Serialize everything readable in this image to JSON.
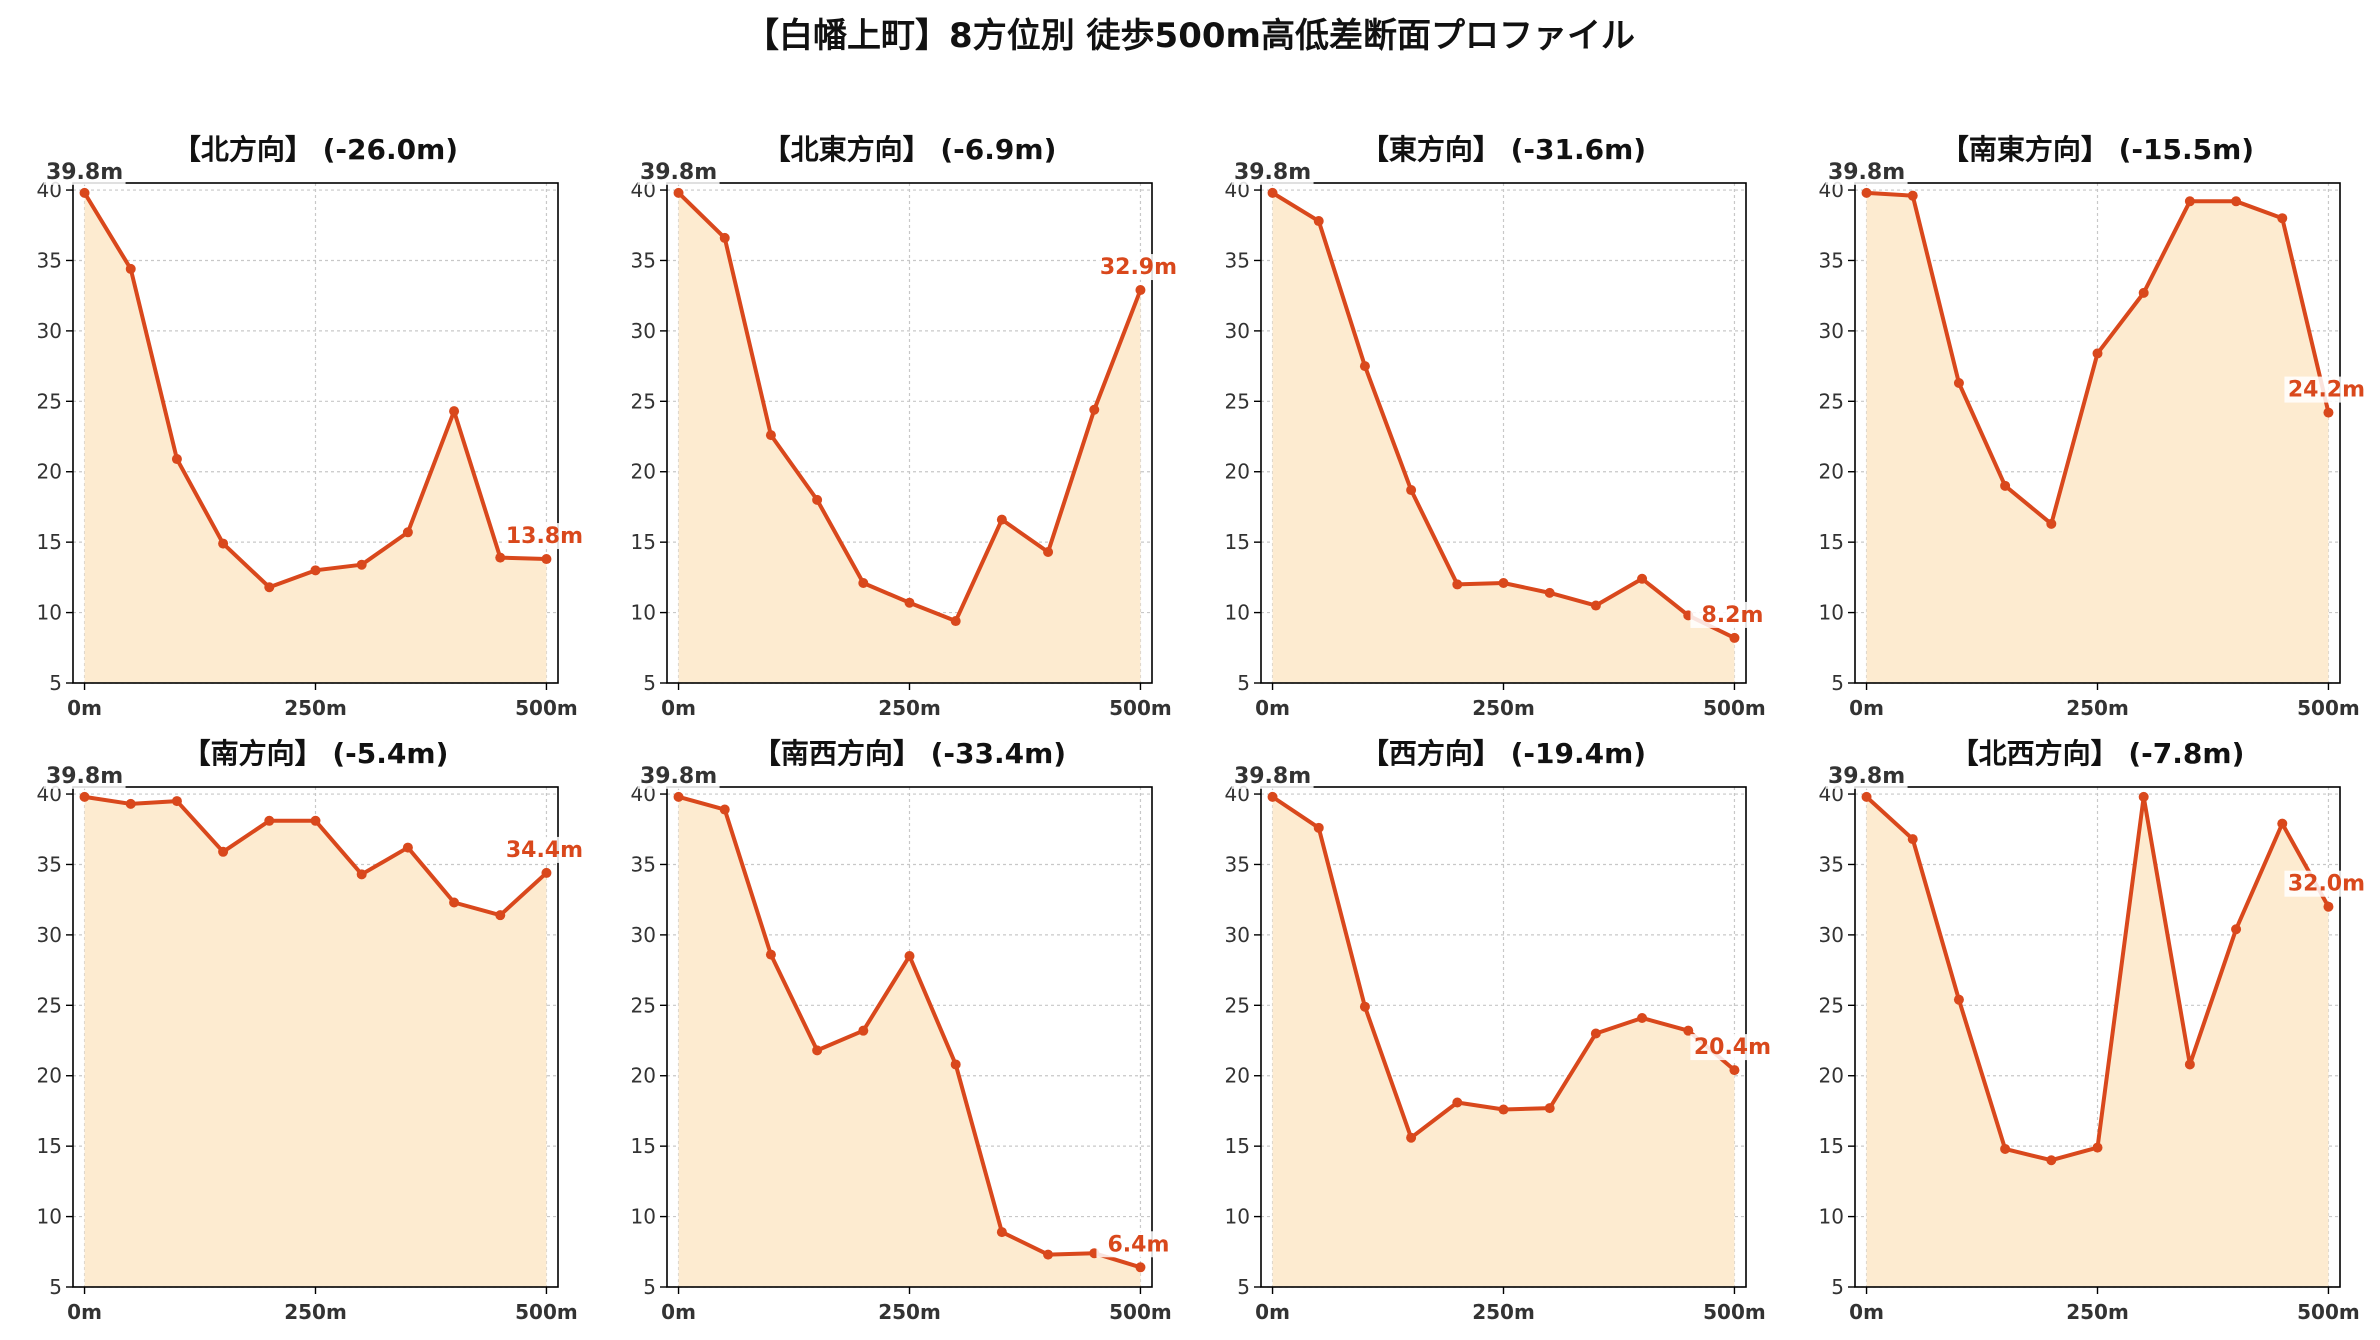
{
  "title": "【白幡上町】8方位別 徒歩500m高低差断面プロファイル",
  "colors": {
    "line": "#d9481c",
    "fill": "#fdebd0",
    "grid": "#c8c8c8",
    "axis": "#000000"
  },
  "chart_data": [
    {
      "type": "area",
      "title": "【北方向】 (-26.0m)",
      "x": [
        0,
        50,
        100,
        150,
        200,
        250,
        300,
        350,
        400,
        450,
        500
      ],
      "values": [
        39.8,
        34.4,
        20.9,
        14.9,
        11.8,
        13.0,
        13.4,
        15.7,
        24.3,
        13.9,
        13.8
      ],
      "start_label": "39.8m",
      "end_label": "13.8m",
      "ylim": [
        5,
        40
      ],
      "yticks": [
        5,
        10,
        15,
        20,
        25,
        30,
        35,
        40
      ],
      "xticks": [
        0,
        250,
        500
      ],
      "xtick_labels": [
        "0m",
        "250m",
        "500m"
      ],
      "grid": true
    },
    {
      "type": "area",
      "title": "【北東方向】 (-6.9m)",
      "x": [
        0,
        50,
        100,
        150,
        200,
        250,
        300,
        350,
        400,
        450,
        500
      ],
      "values": [
        39.8,
        36.6,
        22.6,
        18.0,
        12.1,
        10.7,
        9.4,
        16.6,
        14.3,
        24.4,
        32.9
      ],
      "start_label": "39.8m",
      "end_label": "32.9m",
      "ylim": [
        5,
        40
      ],
      "yticks": [
        5,
        10,
        15,
        20,
        25,
        30,
        35,
        40
      ],
      "xticks": [
        0,
        250,
        500
      ],
      "xtick_labels": [
        "0m",
        "250m",
        "500m"
      ],
      "grid": true
    },
    {
      "type": "area",
      "title": "【東方向】 (-31.6m)",
      "x": [
        0,
        50,
        100,
        150,
        200,
        250,
        300,
        350,
        400,
        450,
        500
      ],
      "values": [
        39.8,
        37.8,
        27.5,
        18.7,
        12.0,
        12.1,
        11.4,
        10.5,
        12.4,
        9.8,
        8.2
      ],
      "start_label": "39.8m",
      "end_label": "8.2m",
      "ylim": [
        5,
        40
      ],
      "yticks": [
        5,
        10,
        15,
        20,
        25,
        30,
        35,
        40
      ],
      "xticks": [
        0,
        250,
        500
      ],
      "xtick_labels": [
        "0m",
        "250m",
        "500m"
      ],
      "grid": true
    },
    {
      "type": "area",
      "title": "【南東方向】 (-15.5m)",
      "x": [
        0,
        50,
        100,
        150,
        200,
        250,
        300,
        350,
        400,
        450,
        500
      ],
      "values": [
        39.8,
        39.6,
        26.3,
        19.0,
        16.3,
        28.4,
        32.7,
        39.2,
        39.2,
        38.0,
        24.2
      ],
      "start_label": "39.8m",
      "end_label": "24.2m",
      "ylim": [
        5,
        40
      ],
      "yticks": [
        5,
        10,
        15,
        20,
        25,
        30,
        35,
        40
      ],
      "xticks": [
        0,
        250,
        500
      ],
      "xtick_labels": [
        "0m",
        "250m",
        "500m"
      ],
      "grid": true
    },
    {
      "type": "area",
      "title": "【南方向】 (-5.4m)",
      "x": [
        0,
        50,
        100,
        150,
        200,
        250,
        300,
        350,
        400,
        450,
        500
      ],
      "values": [
        39.8,
        39.3,
        39.5,
        35.9,
        38.1,
        38.1,
        34.3,
        36.2,
        32.3,
        31.4,
        34.4
      ],
      "start_label": "39.8m",
      "end_label": "34.4m",
      "ylim": [
        5,
        40
      ],
      "yticks": [
        5,
        10,
        15,
        20,
        25,
        30,
        35,
        40
      ],
      "xticks": [
        0,
        250,
        500
      ],
      "xtick_labels": [
        "0m",
        "250m",
        "500m"
      ],
      "grid": true
    },
    {
      "type": "area",
      "title": "【南西方向】 (-33.4m)",
      "x": [
        0,
        50,
        100,
        150,
        200,
        250,
        300,
        350,
        400,
        450,
        500
      ],
      "values": [
        39.8,
        38.9,
        28.6,
        21.8,
        23.2,
        28.5,
        20.8,
        8.9,
        7.3,
        7.4,
        6.4
      ],
      "start_label": "39.8m",
      "end_label": "6.4m",
      "ylim": [
        5,
        40
      ],
      "yticks": [
        5,
        10,
        15,
        20,
        25,
        30,
        35,
        40
      ],
      "xticks": [
        0,
        250,
        500
      ],
      "xtick_labels": [
        "0m",
        "250m",
        "500m"
      ],
      "grid": true
    },
    {
      "type": "area",
      "title": "【西方向】 (-19.4m)",
      "x": [
        0,
        50,
        100,
        150,
        200,
        250,
        300,
        350,
        400,
        450,
        500
      ],
      "values": [
        39.8,
        37.6,
        24.9,
        15.6,
        18.1,
        17.6,
        17.7,
        23.0,
        24.1,
        23.2,
        20.4
      ],
      "start_label": "39.8m",
      "end_label": "20.4m",
      "ylim": [
        5,
        40
      ],
      "yticks": [
        5,
        10,
        15,
        20,
        25,
        30,
        35,
        40
      ],
      "xticks": [
        0,
        250,
        500
      ],
      "xtick_labels": [
        "0m",
        "250m",
        "500m"
      ],
      "grid": true
    },
    {
      "type": "area",
      "title": "【北西方向】 (-7.8m)",
      "x": [
        0,
        50,
        100,
        150,
        200,
        250,
        300,
        350,
        400,
        450,
        500
      ],
      "values": [
        39.8,
        36.8,
        25.4,
        14.8,
        14.0,
        14.9,
        39.8,
        20.8,
        30.4,
        37.9,
        32.0
      ],
      "start_label": "39.8m",
      "end_label": "32.0m",
      "ylim": [
        5,
        40
      ],
      "yticks": [
        5,
        10,
        15,
        20,
        25,
        30,
        35,
        40
      ],
      "xticks": [
        0,
        250,
        500
      ],
      "xtick_labels": [
        "0m",
        "250m",
        "500m"
      ],
      "grid": true
    }
  ]
}
